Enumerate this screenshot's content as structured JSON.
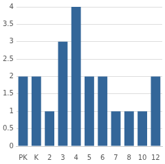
{
  "chart_data": {
    "type": "bar",
    "categories": [
      "PK",
      "K",
      "2",
      "3",
      "4",
      "5",
      "6",
      "7",
      "8",
      "10",
      "12"
    ],
    "values": [
      2,
      2,
      1,
      3,
      4,
      2,
      2,
      1,
      1,
      1,
      2
    ],
    "color": "#336699",
    "ylim": [
      0,
      4
    ],
    "yticks": [
      0,
      0.5,
      1,
      1.5,
      2,
      2.5,
      3,
      3.5,
      4
    ],
    "grid": true
  }
}
